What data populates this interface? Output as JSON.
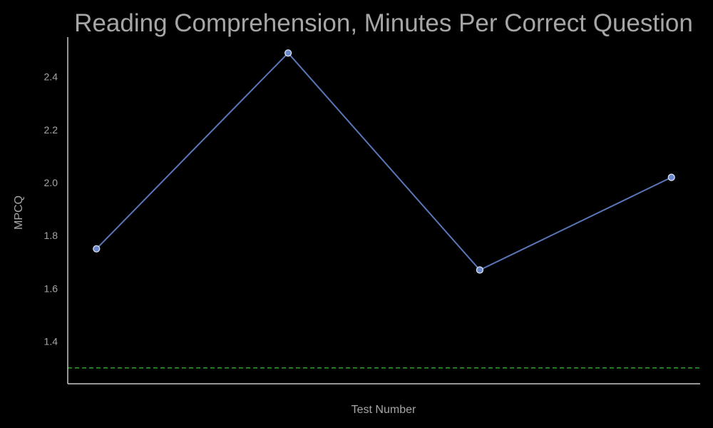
{
  "chart_data": {
    "type": "line",
    "title": "Reading Comprehension, Minutes Per Correct Question",
    "xlabel": "Test Number",
    "ylabel": "MPCQ",
    "x": [
      1,
      2,
      3,
      4
    ],
    "x_tick_labels_visible": false,
    "series": [
      {
        "values": [
          1.75,
          2.49,
          1.67,
          2.02
        ],
        "color": "#5a76b8",
        "marker": "circle"
      }
    ],
    "reference_line": {
      "y": 1.3,
      "color": "#2ca02c",
      "style": "dashed"
    },
    "ylim": [
      1.24,
      2.55
    ],
    "xlim": [
      0.85,
      4.15
    ],
    "y_ticks": [
      1.4,
      1.6,
      1.8,
      2.0,
      2.2,
      2.4
    ],
    "y_tick_labels": [
      "1.4",
      "1.6",
      "1.8",
      "2.0",
      "2.2",
      "2.4"
    ],
    "grid": false,
    "background": "#000000",
    "text_color": "#a6a6a6",
    "axis_color": "#c8c8c8"
  }
}
